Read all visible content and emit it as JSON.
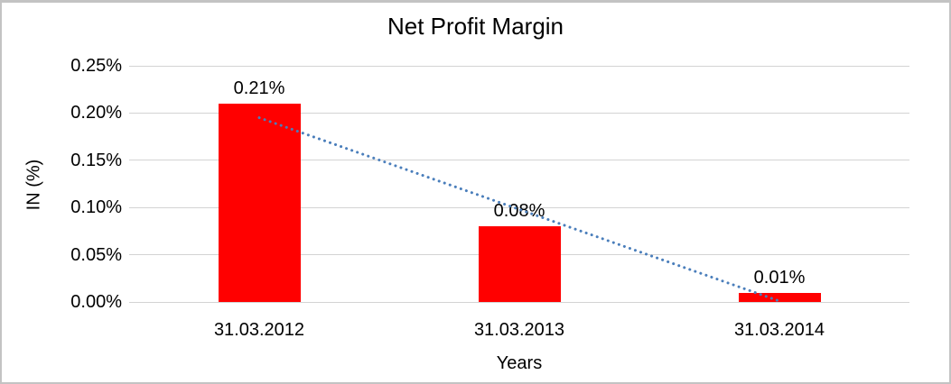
{
  "chart_data": {
    "type": "bar",
    "title": "Net Profit Margin",
    "xlabel": "Years",
    "ylabel": "IN (%)",
    "categories": [
      "31.03.2012",
      "31.03.2013",
      "31.03.2014"
    ],
    "values": [
      0.21,
      0.08,
      0.01
    ],
    "data_labels": [
      "0.21%",
      "0.08%",
      "0.01%"
    ],
    "ylim": [
      0,
      0.25
    ],
    "ytick_step": 0.05,
    "ytick_labels": [
      "0.25%",
      "0.20%",
      "0.15%",
      "0.10%",
      "0.05%",
      "0.00%"
    ],
    "grid": true,
    "legend": "none",
    "bar_color": "#ff0000",
    "gridline_color": "#d3d3d3",
    "text_color": "#000000",
    "frame_border_color": "#c3c3c3",
    "trendline": {
      "type": "linear",
      "style": "dotted",
      "color": "#4a7ebb",
      "start_value": 0.195,
      "end_value": 0.001
    }
  }
}
